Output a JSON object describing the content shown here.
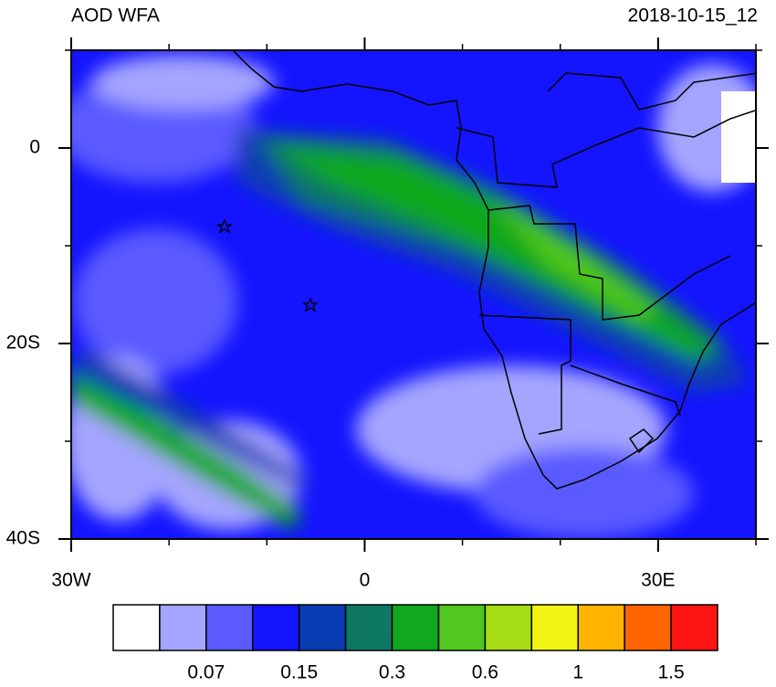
{
  "header": {
    "title": "AOD WFA",
    "date": "2018-10-15_12"
  },
  "map": {
    "xlim": [
      -30,
      40
    ],
    "ylim": [
      -40,
      10
    ],
    "xticks": [
      {
        "value": -30,
        "label": "30W"
      },
      0,
      {
        "value": 30,
        "label": "30E"
      }
    ],
    "yticks": [
      0,
      {
        "value": -20,
        "label": "20S"
      },
      {
        "value": -40,
        "label": "40S"
      }
    ],
    "minor_step": 10
  },
  "colorbar": {
    "colors": [
      "#ffffff",
      "#a5a5ff",
      "#5a5aff",
      "#1414ff",
      "#0a3cb4",
      "#0f7864",
      "#0fa81e",
      "#50c81e",
      "#a5dc14",
      "#f0f514",
      "#ffb400",
      "#ff6400",
      "#ff1414"
    ],
    "labels": [
      0.07,
      0.15,
      0.3,
      0.6,
      1,
      1.5
    ]
  }
}
